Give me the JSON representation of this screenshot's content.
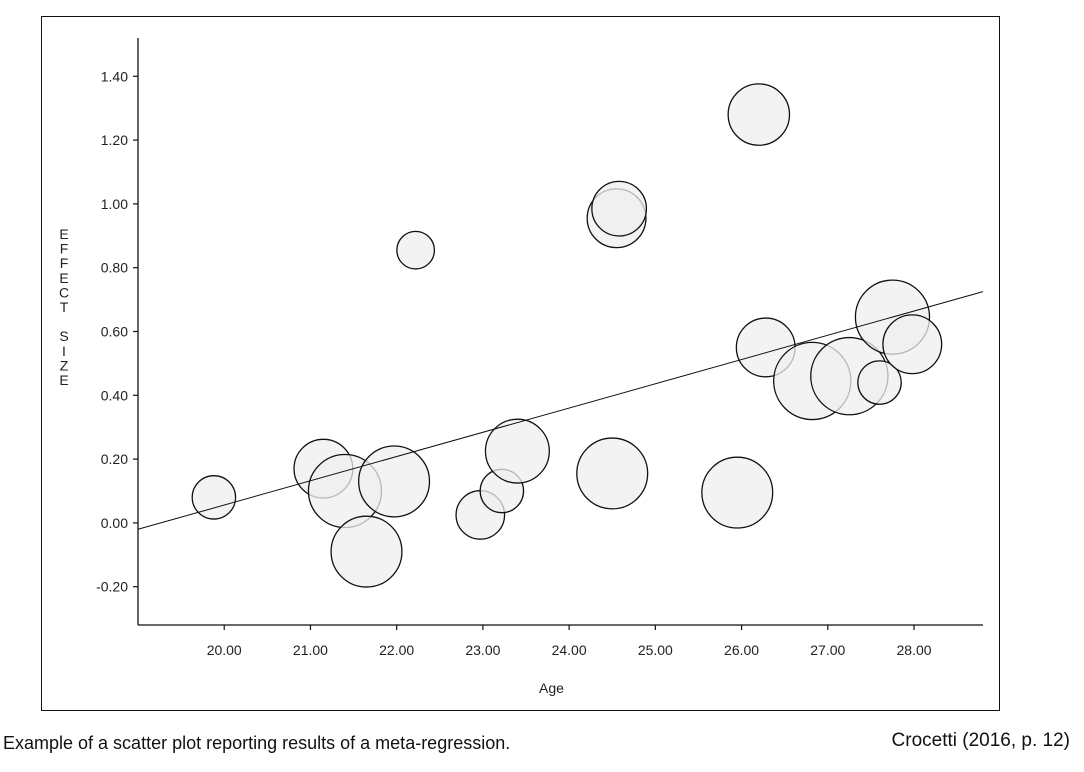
{
  "caption": "Example of a scatter plot reporting results of a meta-regression.",
  "citation": "Crocetti (2016, p. 12)",
  "chart_data": {
    "type": "scatter",
    "title": "",
    "xlabel": "Age",
    "ylabel": "EFFECT SIZE",
    "xlim": [
      19.0,
      28.8
    ],
    "ylim": [
      -0.32,
      1.52
    ],
    "x_ticks": [
      20,
      21,
      22,
      23,
      24,
      25,
      26,
      27,
      28
    ],
    "x_tick_labels": [
      "20.00",
      "21.00",
      "22.00",
      "23.00",
      "24.00",
      "25.00",
      "26.00",
      "27.00",
      "28.00"
    ],
    "y_ticks": [
      -0.2,
      0.0,
      0.2,
      0.4,
      0.6,
      0.8,
      1.0,
      1.2,
      1.4
    ],
    "y_tick_labels": [
      "-0.20",
      "0.00",
      "0.20",
      "0.40",
      "0.60",
      "0.80",
      "1.00",
      "1.20",
      "1.40"
    ],
    "grid": false,
    "bubble_note": "marker area proportional to study weight",
    "points": [
      {
        "x": 19.88,
        "y": 0.08,
        "size": 0.6
      },
      {
        "x": 21.15,
        "y": 0.17,
        "size": 1.1
      },
      {
        "x": 21.4,
        "y": 0.1,
        "size": 1.7
      },
      {
        "x": 21.65,
        "y": -0.09,
        "size": 1.6
      },
      {
        "x": 21.97,
        "y": 0.13,
        "size": 1.6
      },
      {
        "x": 22.22,
        "y": 0.855,
        "size": 0.45
      },
      {
        "x": 22.97,
        "y": 0.025,
        "size": 0.75
      },
      {
        "x": 23.22,
        "y": 0.1,
        "size": 0.6
      },
      {
        "x": 23.4,
        "y": 0.225,
        "size": 1.3
      },
      {
        "x": 24.5,
        "y": 0.155,
        "size": 1.6
      },
      {
        "x": 24.55,
        "y": 0.955,
        "size": 1.1
      },
      {
        "x": 24.58,
        "y": 0.985,
        "size": 0.95
      },
      {
        "x": 25.95,
        "y": 0.095,
        "size": 1.6
      },
      {
        "x": 26.2,
        "y": 1.28,
        "size": 1.2
      },
      {
        "x": 26.28,
        "y": 0.55,
        "size": 1.1
      },
      {
        "x": 26.82,
        "y": 0.445,
        "size": 1.9
      },
      {
        "x": 27.25,
        "y": 0.46,
        "size": 1.9
      },
      {
        "x": 27.6,
        "y": 0.44,
        "size": 0.6
      },
      {
        "x": 27.75,
        "y": 0.645,
        "size": 1.75
      },
      {
        "x": 27.98,
        "y": 0.56,
        "size": 1.1
      }
    ],
    "regression_line": {
      "x": [
        19.0,
        28.8
      ],
      "y": [
        -0.02,
        0.725
      ]
    },
    "colors": {
      "bubble_fill": "#efefef",
      "bubble_stroke": "#111111",
      "line": "#111111",
      "axis": "#111111"
    }
  }
}
